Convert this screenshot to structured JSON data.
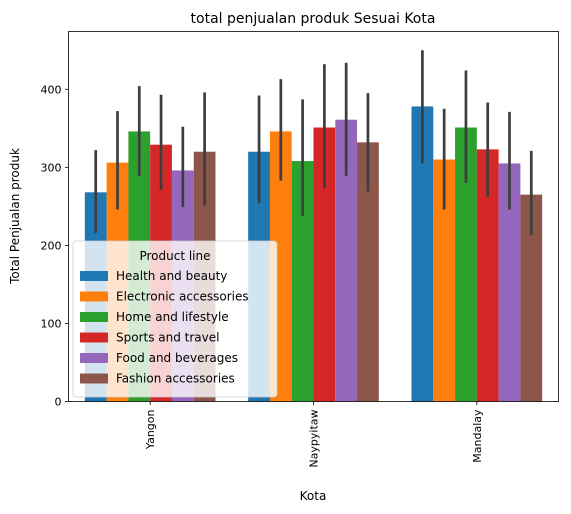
{
  "chart_data": {
    "type": "bar",
    "title": "total penjualan produk Sesuai Kota",
    "xlabel": "Kota",
    "ylabel": "Total Penjualan produk",
    "categories": [
      "Yangon",
      "Naypyitaw",
      "Mandalay"
    ],
    "ylim": [
      0,
      474
    ],
    "yticks": [
      0,
      100,
      200,
      300,
      400
    ],
    "grid": false,
    "legend": {
      "title": "Product line",
      "placement": "lower-left"
    },
    "series": [
      {
        "name": "Health and beauty",
        "color": "#1f77b4",
        "values": [
          268,
          320,
          378
        ],
        "ci": [
          [
            216,
            322
          ],
          [
            254,
            392
          ],
          [
            305,
            450
          ]
        ]
      },
      {
        "name": "Electronic accessories",
        "color": "#ff7f0e",
        "values": [
          306,
          346,
          310
        ],
        "ci": [
          [
            246,
            372
          ],
          [
            283,
            413
          ],
          [
            246,
            375
          ]
        ]
      },
      {
        "name": "Home and lifestyle",
        "color": "#2ca02c",
        "values": [
          346,
          308,
          351
        ],
        "ci": [
          [
            289,
            404
          ],
          [
            238,
            387
          ],
          [
            280,
            424
          ]
        ]
      },
      {
        "name": "Sports and travel",
        "color": "#d62728",
        "values": [
          329,
          351,
          323
        ],
        "ci": [
          [
            271,
            393
          ],
          [
            273,
            432
          ],
          [
            262,
            383
          ]
        ]
      },
      {
        "name": "Food and beverages",
        "color": "#9467bd",
        "values": [
          296,
          361,
          305
        ],
        "ci": [
          [
            249,
            352
          ],
          [
            289,
            434
          ],
          [
            246,
            371
          ]
        ]
      },
      {
        "name": "Fashion accessories",
        "color": "#8c564b",
        "values": [
          320,
          332,
          265
        ],
        "ci": [
          [
            251,
            396
          ],
          [
            269,
            395
          ],
          [
            213,
            321
          ]
        ]
      }
    ]
  }
}
